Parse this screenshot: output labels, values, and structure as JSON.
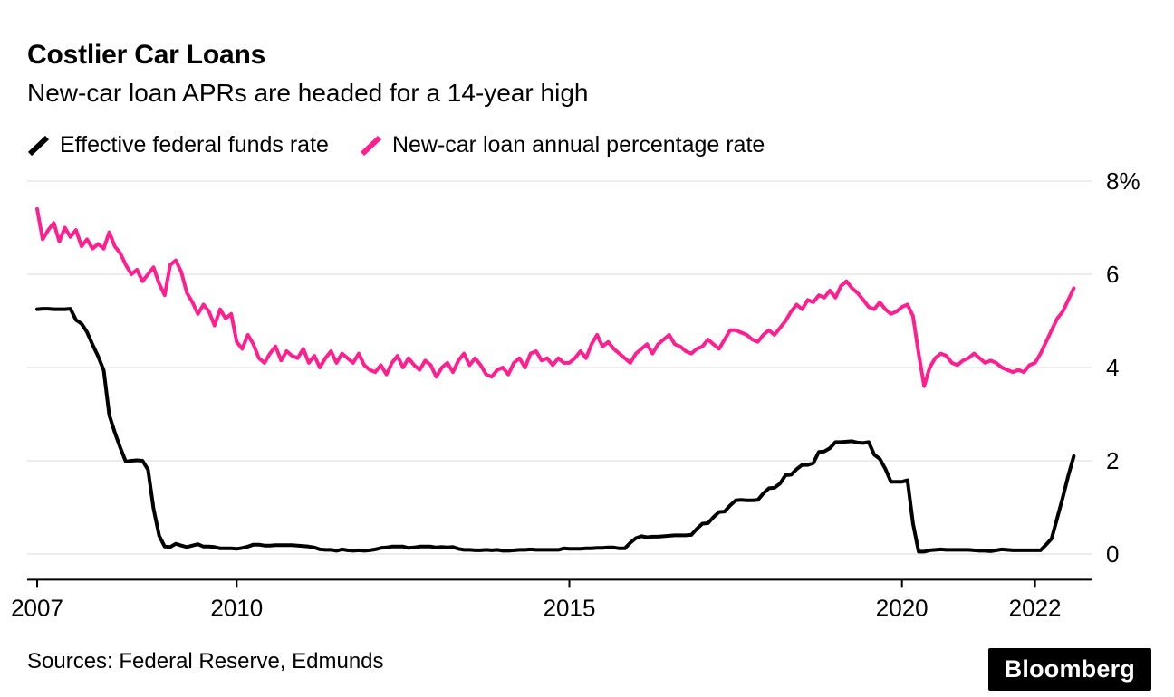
{
  "branding": {
    "logo_text": "Bloomberg"
  },
  "chart_data": {
    "type": "line",
    "title": "Costlier Car Loans",
    "subtitle": "New-car loan APRs are headed for a 14-year high",
    "source": "Sources: Federal Reserve, Edmunds",
    "x_start_year": 2007,
    "x_step_months": 1,
    "x_ticks": [
      2007,
      2010,
      2015,
      2020,
      2022
    ],
    "y_ticks": [
      0,
      2,
      4,
      6,
      8
    ],
    "y_tick_labels": [
      "0",
      "2",
      "4",
      "6",
      "8%"
    ],
    "ylim": [
      -0.55,
      8
    ],
    "xlim": [
      2006.85,
      2022.85
    ],
    "grid": true,
    "grid_color": "#d9d9d9",
    "axis_color": "#000000",
    "legend_position": "top",
    "series": [
      {
        "name": "Effective federal funds rate",
        "color": "#000000",
        "values": [
          5.25,
          5.26,
          5.26,
          5.25,
          5.25,
          5.25,
          5.26,
          5.02,
          4.94,
          4.76,
          4.49,
          4.24,
          3.94,
          2.98,
          2.61,
          2.28,
          1.98,
          2.0,
          2.01,
          2.0,
          1.81,
          0.97,
          0.39,
          0.16,
          0.15,
          0.22,
          0.18,
          0.15,
          0.18,
          0.21,
          0.16,
          0.16,
          0.15,
          0.12,
          0.12,
          0.12,
          0.11,
          0.13,
          0.16,
          0.2,
          0.2,
          0.18,
          0.18,
          0.19,
          0.19,
          0.19,
          0.19,
          0.18,
          0.17,
          0.16,
          0.14,
          0.1,
          0.09,
          0.09,
          0.07,
          0.1,
          0.08,
          0.07,
          0.08,
          0.07,
          0.08,
          0.1,
          0.13,
          0.14,
          0.16,
          0.16,
          0.16,
          0.13,
          0.14,
          0.16,
          0.16,
          0.16,
          0.14,
          0.15,
          0.14,
          0.15,
          0.11,
          0.09,
          0.09,
          0.08,
          0.08,
          0.09,
          0.08,
          0.09,
          0.07,
          0.07,
          0.08,
          0.09,
          0.09,
          0.1,
          0.09,
          0.09,
          0.09,
          0.09,
          0.09,
          0.12,
          0.11,
          0.11,
          0.11,
          0.12,
          0.12,
          0.13,
          0.13,
          0.14,
          0.14,
          0.12,
          0.12,
          0.24,
          0.34,
          0.38,
          0.36,
          0.37,
          0.37,
          0.38,
          0.39,
          0.4,
          0.4,
          0.4,
          0.41,
          0.54,
          0.65,
          0.66,
          0.79,
          0.9,
          0.91,
          1.04,
          1.15,
          1.16,
          1.15,
          1.15,
          1.16,
          1.3,
          1.41,
          1.42,
          1.51,
          1.69,
          1.7,
          1.82,
          1.91,
          1.91,
          1.95,
          2.19,
          2.2,
          2.27,
          2.4,
          2.4,
          2.41,
          2.42,
          2.39,
          2.38,
          2.4,
          2.13,
          2.04,
          1.83,
          1.55,
          1.55,
          1.55,
          1.58,
          0.65,
          0.05,
          0.05,
          0.08,
          0.09,
          0.1,
          0.09,
          0.09,
          0.09,
          0.09,
          0.09,
          0.08,
          0.07,
          0.07,
          0.06,
          0.08,
          0.1,
          0.09,
          0.08,
          0.08,
          0.08,
          0.08,
          0.08,
          0.08,
          0.2,
          0.33,
          0.77,
          1.21,
          1.68,
          2.1
        ]
      },
      {
        "name": "New-car loan annual percentage rate",
        "color": "#ff1f8f",
        "values": [
          7.4,
          6.75,
          6.95,
          7.1,
          6.7,
          7.0,
          6.8,
          6.95,
          6.6,
          6.75,
          6.55,
          6.65,
          6.55,
          6.9,
          6.6,
          6.45,
          6.2,
          6.0,
          6.1,
          5.85,
          6.0,
          6.15,
          5.8,
          5.55,
          6.2,
          6.3,
          6.05,
          5.6,
          5.4,
          5.15,
          5.35,
          5.2,
          4.9,
          5.25,
          5.05,
          5.15,
          4.55,
          4.4,
          4.7,
          4.5,
          4.2,
          4.1,
          4.3,
          4.45,
          4.15,
          4.35,
          4.25,
          4.2,
          4.4,
          4.1,
          4.25,
          4.0,
          4.2,
          4.35,
          4.1,
          4.3,
          4.2,
          4.1,
          4.3,
          4.05,
          3.95,
          3.9,
          4.05,
          3.85,
          4.1,
          4.25,
          4.0,
          4.2,
          4.05,
          3.95,
          4.15,
          4.05,
          3.8,
          4.0,
          4.1,
          3.9,
          4.15,
          4.3,
          4.05,
          4.2,
          4.05,
          3.85,
          3.8,
          3.95,
          4.0,
          3.85,
          4.1,
          4.2,
          4.0,
          4.3,
          4.35,
          4.15,
          4.2,
          4.05,
          4.2,
          4.1,
          4.1,
          4.2,
          4.35,
          4.2,
          4.5,
          4.7,
          4.45,
          4.55,
          4.4,
          4.3,
          4.2,
          4.1,
          4.3,
          4.4,
          4.5,
          4.3,
          4.5,
          4.6,
          4.7,
          4.5,
          4.45,
          4.35,
          4.3,
          4.4,
          4.45,
          4.6,
          4.5,
          4.4,
          4.6,
          4.8,
          4.8,
          4.75,
          4.7,
          4.6,
          4.55,
          4.7,
          4.8,
          4.7,
          4.85,
          5.0,
          5.2,
          5.35,
          5.25,
          5.45,
          5.4,
          5.55,
          5.5,
          5.65,
          5.5,
          5.75,
          5.85,
          5.7,
          5.6,
          5.45,
          5.3,
          5.25,
          5.4,
          5.25,
          5.15,
          5.2,
          5.3,
          5.35,
          5.1,
          4.3,
          3.6,
          4.0,
          4.2,
          4.3,
          4.25,
          4.1,
          4.05,
          4.15,
          4.2,
          4.3,
          4.2,
          4.1,
          4.15,
          4.1,
          4.0,
          3.95,
          3.9,
          3.95,
          3.9,
          4.05,
          4.1,
          4.3,
          4.55,
          4.8,
          5.05,
          5.2,
          5.45,
          5.7
        ]
      }
    ]
  }
}
